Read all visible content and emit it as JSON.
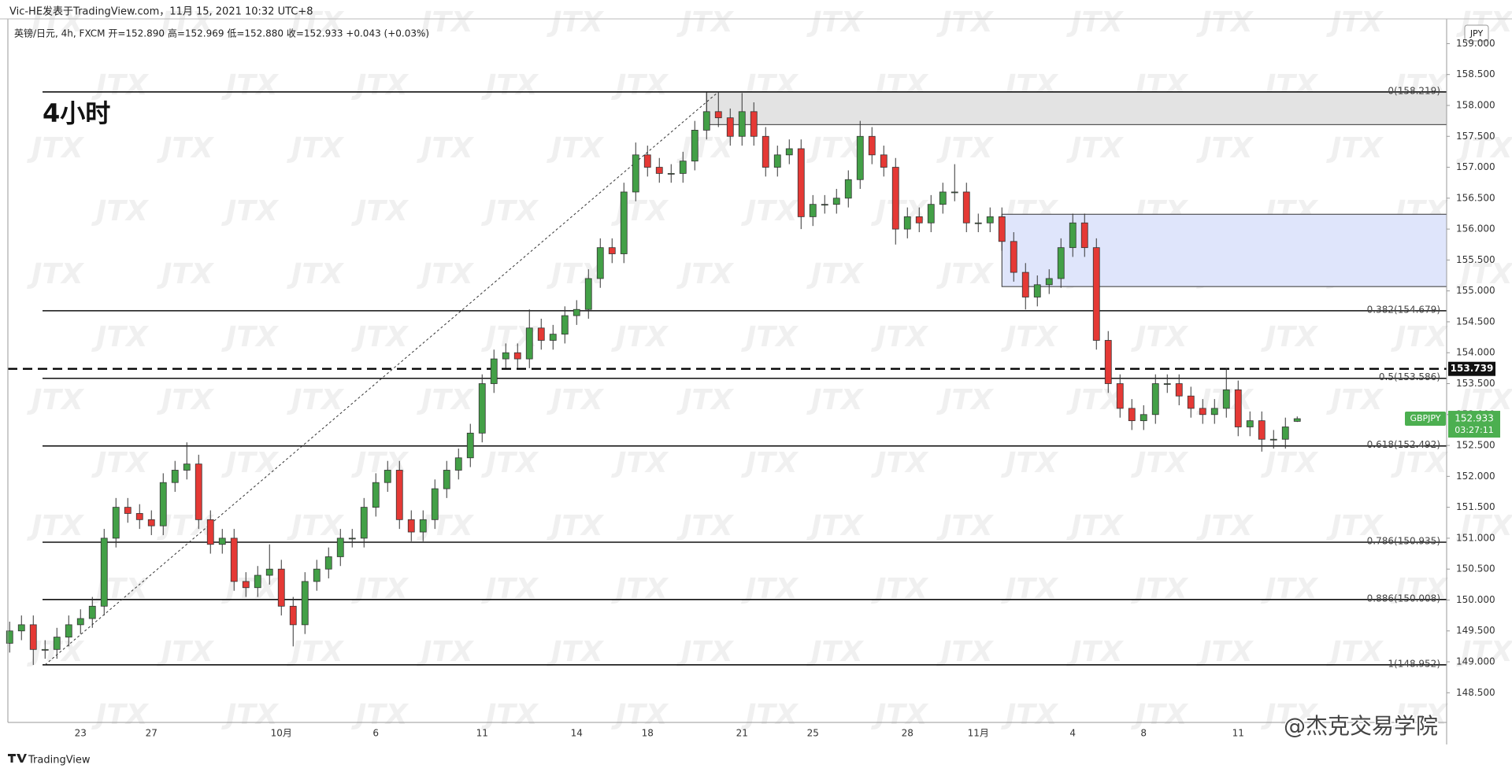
{
  "header": {
    "publisher": "Vic-HE发表于TradingView.com，11月 15, 2021 10:32 UTC+8",
    "symbol_info": "英镑/日元, 4h, FXCM 开=152.890 高=152.969 低=152.880 收=152.933 +0.043 (+0.03%)",
    "currency": "JPY",
    "brand": "TradingView"
  },
  "watermark": {
    "pattern": "JTX",
    "signature": "@杰克交易学院"
  },
  "chart_data": {
    "type": "candlestick",
    "annotation": "4小时",
    "categories": [
      null,
      null,
      null,
      null,
      null,
      null,
      "23",
      null,
      null,
      null,
      null,
      null,
      "27",
      null,
      null,
      null,
      null,
      null,
      null,
      null,
      null,
      null,
      null,
      "10月",
      null,
      null,
      null,
      null,
      null,
      null,
      null,
      "6",
      null,
      null,
      null,
      null,
      null,
      null,
      null,
      null,
      "11",
      null,
      null,
      null,
      null,
      null,
      null,
      null,
      "14",
      null,
      null,
      null,
      null,
      null,
      "18",
      null,
      null,
      null,
      null,
      null,
      null,
      null,
      "21",
      null,
      null,
      null,
      null,
      null,
      "25",
      null,
      null,
      null,
      null,
      null,
      null,
      null,
      "28",
      null,
      null,
      null,
      null,
      null,
      "11月",
      null,
      null,
      null,
      null,
      null,
      null,
      null,
      "4",
      null,
      null,
      null,
      null,
      null,
      "8",
      null,
      null,
      null,
      null,
      null,
      null,
      null,
      "11",
      null,
      null,
      null,
      null,
      null
    ],
    "open": [
      149.3,
      149.5,
      149.6,
      149.2,
      149.2,
      149.4,
      149.6,
      149.7,
      149.9,
      151.0,
      151.5,
      151.4,
      151.3,
      151.2,
      151.9,
      152.1,
      152.2,
      151.3,
      150.9,
      151.0,
      150.3,
      150.2,
      150.4,
      150.5,
      149.9,
      149.6,
      150.3,
      150.5,
      150.7,
      151.0,
      151.0,
      151.5,
      151.9,
      152.1,
      151.3,
      151.1,
      151.3,
      151.8,
      152.1,
      152.3,
      152.7,
      153.5,
      153.9,
      154.0,
      153.9,
      154.4,
      154.2,
      154.3,
      154.6,
      154.7,
      155.2,
      155.7,
      155.6,
      156.6,
      157.2,
      157.0,
      156.9,
      156.9,
      157.1,
      157.6,
      157.9,
      157.8,
      157.5,
      157.9,
      157.5,
      157.0,
      157.2,
      157.3,
      156.2,
      156.4,
      156.4,
      156.5,
      156.8,
      157.5,
      157.2,
      157.0,
      156.0,
      156.2,
      156.1,
      156.4,
      156.6,
      156.6,
      156.1,
      156.1,
      156.2,
      155.8,
      155.3,
      154.9,
      155.1,
      155.2,
      155.7,
      156.1,
      155.7,
      154.2,
      153.5,
      153.1,
      152.9,
      153.0,
      153.5,
      153.5,
      153.3,
      153.1,
      153.0,
      153.1,
      153.4,
      152.8,
      152.9,
      152.6,
      152.6,
      152.89
    ],
    "high": [
      149.65,
      149.75,
      149.75,
      149.35,
      149.55,
      149.75,
      149.85,
      150.05,
      151.15,
      151.65,
      151.65,
      151.55,
      151.45,
      152.05,
      152.25,
      152.55,
      152.35,
      151.45,
      151.15,
      151.15,
      150.45,
      150.55,
      150.9,
      150.65,
      150.05,
      150.45,
      150.65,
      150.85,
      151.15,
      151.15,
      151.65,
      152.05,
      152.25,
      152.25,
      151.45,
      151.45,
      151.95,
      152.25,
      152.45,
      152.85,
      153.65,
      154.05,
      154.15,
      154.15,
      154.7,
      154.55,
      154.45,
      154.75,
      154.85,
      155.35,
      155.85,
      155.85,
      156.75,
      157.4,
      157.35,
      157.15,
      157.05,
      157.25,
      157.75,
      158.2,
      158.22,
      157.95,
      158.2,
      158.05,
      157.65,
      157.35,
      157.45,
      157.45,
      156.55,
      156.55,
      156.65,
      156.95,
      157.75,
      157.65,
      157.35,
      157.15,
      156.35,
      156.35,
      156.55,
      156.75,
      157.05,
      156.75,
      156.25,
      156.35,
      156.35,
      155.95,
      155.45,
      155.25,
      155.35,
      155.85,
      156.25,
      156.25,
      155.85,
      154.35,
      153.65,
      153.25,
      153.15,
      153.65,
      153.65,
      153.65,
      153.45,
      153.25,
      153.25,
      153.75,
      153.55,
      153.05,
      153.05,
      152.75,
      152.95,
      152.969
    ],
    "low": [
      149.15,
      149.35,
      148.95,
      149.05,
      149.05,
      149.25,
      149.45,
      149.55,
      149.75,
      150.85,
      151.25,
      151.15,
      151.05,
      151.05,
      151.75,
      151.95,
      151.15,
      150.75,
      150.75,
      150.15,
      150.05,
      150.05,
      150.25,
      149.75,
      149.25,
      149.45,
      150.15,
      150.35,
      150.55,
      150.85,
      150.85,
      151.35,
      151.75,
      151.15,
      150.95,
      150.95,
      151.15,
      151.65,
      151.95,
      152.15,
      152.55,
      153.35,
      153.75,
      153.75,
      153.75,
      154.05,
      154.05,
      154.15,
      154.45,
      154.55,
      155.05,
      155.45,
      155.45,
      156.45,
      156.85,
      156.75,
      156.75,
      156.75,
      156.95,
      157.45,
      157.65,
      157.35,
      157.35,
      157.35,
      156.85,
      156.85,
      157.05,
      156.0,
      156.05,
      156.25,
      156.25,
      156.35,
      156.65,
      157.05,
      156.85,
      155.75,
      155.85,
      155.95,
      155.95,
      156.25,
      156.45,
      155.95,
      155.95,
      155.95,
      155.65,
      155.15,
      154.7,
      154.75,
      154.95,
      155.05,
      155.55,
      155.55,
      154.05,
      153.35,
      152.95,
      152.75,
      152.75,
      152.85,
      153.35,
      153.15,
      152.95,
      152.85,
      152.85,
      152.95,
      152.65,
      152.65,
      152.4,
      152.45,
      152.45,
      152.88
    ],
    "close": [
      149.5,
      149.6,
      149.2,
      149.2,
      149.4,
      149.6,
      149.7,
      149.9,
      151.0,
      151.5,
      151.4,
      151.3,
      151.2,
      151.9,
      152.1,
      152.2,
      151.3,
      150.9,
      151.0,
      150.3,
      150.2,
      150.4,
      150.5,
      149.9,
      149.6,
      150.3,
      150.5,
      150.7,
      151.0,
      151.0,
      151.5,
      151.9,
      152.1,
      151.3,
      151.1,
      151.3,
      151.8,
      152.1,
      152.3,
      152.7,
      153.5,
      153.9,
      154.0,
      153.9,
      154.4,
      154.2,
      154.3,
      154.6,
      154.7,
      155.2,
      155.7,
      155.6,
      156.6,
      157.2,
      157.0,
      156.9,
      156.9,
      157.1,
      157.6,
      157.9,
      157.8,
      157.5,
      157.9,
      157.5,
      157.0,
      157.2,
      157.3,
      156.2,
      156.4,
      156.4,
      156.5,
      156.8,
      157.5,
      157.2,
      157.0,
      156.0,
      156.2,
      156.1,
      156.4,
      156.6,
      156.6,
      156.1,
      156.1,
      156.2,
      155.8,
      155.3,
      154.9,
      155.1,
      155.2,
      155.7,
      156.1,
      155.7,
      154.2,
      153.5,
      153.1,
      152.9,
      153.0,
      153.5,
      153.5,
      153.3,
      153.1,
      153.0,
      153.1,
      153.4,
      152.8,
      152.9,
      152.6,
      152.6,
      152.8,
      152.933
    ],
    "up_color": "#43a047",
    "down_color": "#e53935",
    "ylim": [
      148.02,
      159.4
    ],
    "yticks": [
      {
        "value": 148.5,
        "label": "148.500"
      },
      {
        "value": 149,
        "label": "149.000"
      },
      {
        "value": 149.5,
        "label": "149.500"
      },
      {
        "value": 150,
        "label": "150.000"
      },
      {
        "value": 150.5,
        "label": "150.500"
      },
      {
        "value": 151,
        "label": "151.000"
      },
      {
        "value": 151.5,
        "label": "151.500"
      },
      {
        "value": 152,
        "label": "152.000"
      },
      {
        "value": 152.5,
        "label": "152.500"
      },
      {
        "value": 153,
        "label": "153.000"
      },
      {
        "value": 153.5,
        "label": "153.500"
      },
      {
        "value": 154,
        "label": "154.000"
      },
      {
        "value": 154.5,
        "label": "154.500"
      },
      {
        "value": 155,
        "label": "155.000"
      },
      {
        "value": 155.5,
        "label": "155.500"
      },
      {
        "value": 156,
        "label": "156.000"
      },
      {
        "value": 156.5,
        "label": "156.500"
      },
      {
        "value": 157,
        "label": "157.000"
      },
      {
        "value": 157.5,
        "label": "157.500"
      },
      {
        "value": 158,
        "label": "158.000"
      },
      {
        "value": 158.5,
        "label": "158.500"
      },
      {
        "value": 159,
        "label": "159.000"
      }
    ],
    "levels": [
      {
        "value": 158.219,
        "label": "0(158.219)"
      },
      {
        "value": 154.679,
        "label": "0.382(154.679)"
      },
      {
        "value": 153.586,
        "label": "0.5(153.586)"
      },
      {
        "value": 152.492,
        "label": "0.618(152.492)"
      },
      {
        "value": 150.935,
        "label": "0.786(150.935)"
      },
      {
        "value": 150.008,
        "label": "0.886(150.008)"
      },
      {
        "value": 148.952,
        "label": "1(148.952)"
      }
    ],
    "zones": [
      {
        "start": 59,
        "low": 157.69,
        "high": 158.219,
        "color": "#e3e3e3"
      },
      {
        "start": 84,
        "low": 155.07,
        "high": 156.24,
        "color": "#dfe5fb"
      }
    ],
    "trend_line": {
      "x": [
        3,
        60
      ],
      "y": [
        148.952,
        158.219
      ]
    },
    "marker_line": 153.739,
    "last": {
      "symbol": "GBPJPY",
      "price": 152.933,
      "countdown": "03:27:11",
      "color": "#4caf50"
    }
  }
}
